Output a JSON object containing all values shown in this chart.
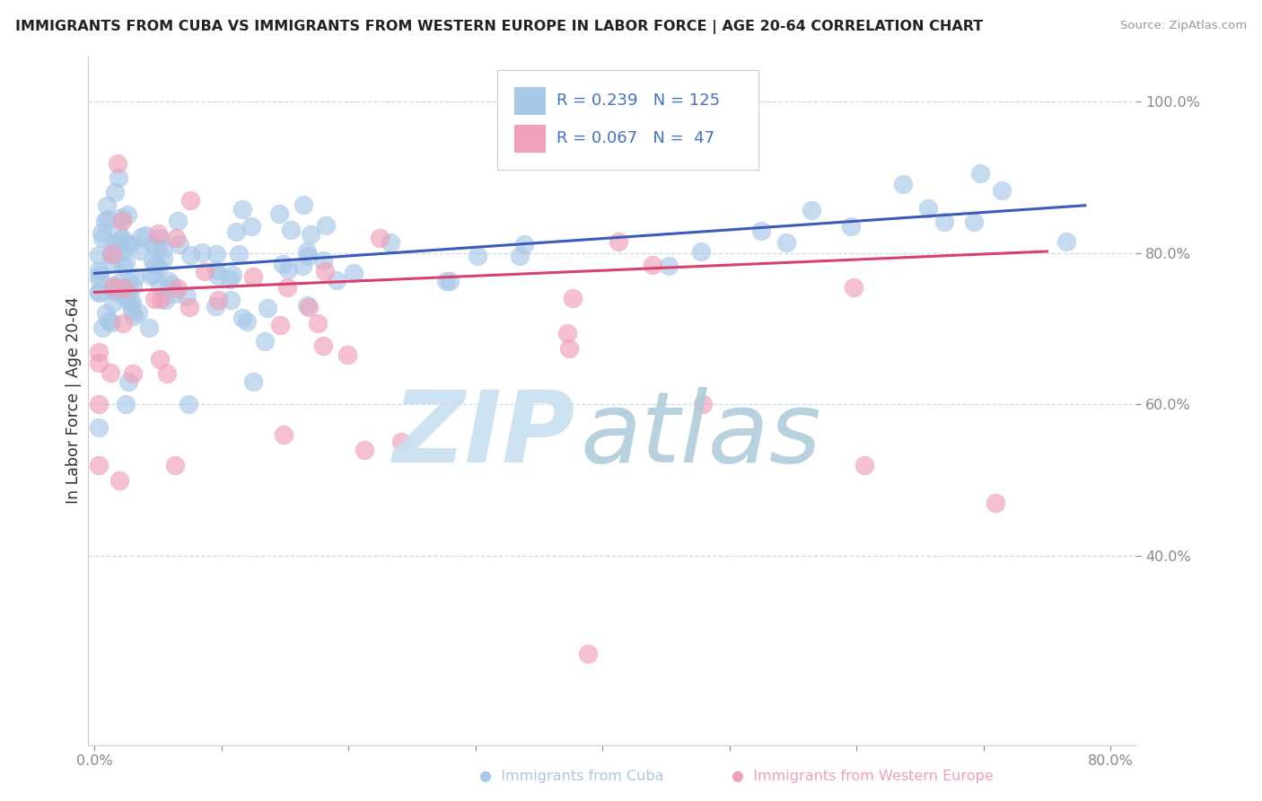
{
  "title": "IMMIGRANTS FROM CUBA VS IMMIGRANTS FROM WESTERN EUROPE IN LABOR FORCE | AGE 20-64 CORRELATION CHART",
  "source": "Source: ZipAtlas.com",
  "ylabel": "In Labor Force | Age 20-64",
  "xlim": [
    -0.005,
    0.82
  ],
  "ylim": [
    0.15,
    1.06
  ],
  "xtick_positions": [
    0.0,
    0.1,
    0.2,
    0.3,
    0.4,
    0.5,
    0.6,
    0.7,
    0.8
  ],
  "xticklabels": [
    "0.0%",
    "",
    "",
    "",
    "",
    "",
    "",
    "",
    "80.0%"
  ],
  "ytick_positions": [
    0.4,
    0.6,
    0.8,
    1.0
  ],
  "yticklabels": [
    "40.0%",
    "60.0%",
    "80.0%",
    "100.0%"
  ],
  "blue_color": "#A8C8E8",
  "pink_color": "#F0A0B8",
  "blue_line_color": "#3B5CB8",
  "pink_line_color": "#D84070",
  "ytick_color": "#4472C4",
  "grid_color": "#C8DCF0",
  "legend_R_blue": "0.239",
  "legend_N_blue": "125",
  "legend_R_pink": "0.067",
  "legend_N_pink": " 47",
  "watermark_zip_color": "#C8E0F0",
  "watermark_atlas_color": "#B0CCDC"
}
